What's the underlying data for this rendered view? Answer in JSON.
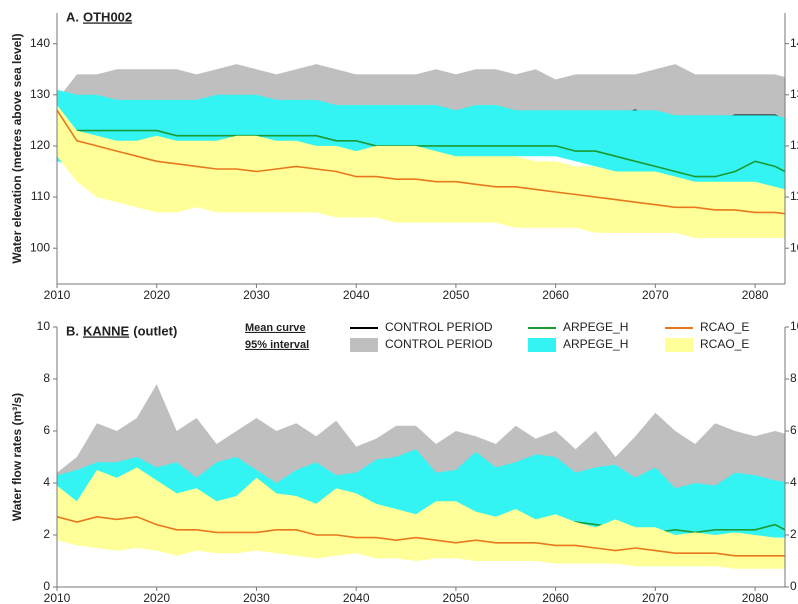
{
  "chart_data": [
    {
      "type": "band-line",
      "panel": "A.",
      "title": "OTH002",
      "ylabel": "Water elevation (metres above sea level)",
      "x": [
        2010,
        2012,
        2014,
        2016,
        2018,
        2020,
        2022,
        2024,
        2026,
        2028,
        2030,
        2032,
        2034,
        2036,
        2038,
        2040,
        2042,
        2044,
        2046,
        2048,
        2050,
        2052,
        2054,
        2056,
        2058,
        2060,
        2062,
        2064,
        2066,
        2068,
        2070,
        2072,
        2074,
        2076,
        2078,
        2080,
        2082,
        2084
      ],
      "xlim": [
        2010,
        2083
      ],
      "xticks": [
        2010,
        2020,
        2030,
        2040,
        2050,
        2060,
        2070,
        2080
      ],
      "ylim": [
        93,
        146
      ],
      "yticks": [
        100,
        110,
        120,
        130,
        140
      ],
      "series": [
        {
          "name": "CONTROL PERIOD",
          "kind": "band",
          "color": "#bfbfbf",
          "upper": [
            129,
            134,
            134,
            135,
            135,
            135,
            135,
            134,
            135,
            136,
            135,
            134,
            135,
            136,
            135,
            134,
            134,
            134,
            134,
            135,
            134,
            135,
            135,
            134,
            135,
            133,
            134,
            134,
            134,
            134,
            135,
            136,
            134,
            134,
            134,
            134,
            134,
            133
          ],
          "lower": [
            119,
            120,
            120,
            120,
            120,
            120,
            120,
            120,
            120,
            120,
            120,
            120,
            120,
            120,
            120,
            120,
            120,
            120,
            120,
            120,
            120,
            120,
            120,
            120,
            120,
            120,
            120,
            120,
            120,
            120,
            120,
            120,
            120,
            120,
            120,
            120,
            120,
            120
          ]
        },
        {
          "name": "CONTROL PERIOD",
          "kind": "line",
          "color": "#000000",
          "values": [
            126,
            126,
            126,
            126,
            126,
            126,
            126,
            126,
            126,
            126,
            126,
            126,
            126,
            126,
            127,
            125,
            125,
            125,
            125,
            126,
            125,
            125,
            125,
            125,
            125,
            125,
            126,
            126,
            126,
            127,
            125,
            125,
            125,
            125,
            126,
            126,
            126,
            124
          ]
        },
        {
          "name": "ARPEGE_H",
          "kind": "band",
          "color": "#33f3f3",
          "upper": [
            131,
            130,
            130,
            129,
            129,
            129,
            129,
            129,
            130,
            130,
            130,
            129,
            129,
            129,
            128,
            128,
            128,
            128,
            128,
            128,
            127,
            128,
            128,
            127,
            127,
            127,
            127,
            127,
            127,
            127,
            127,
            126,
            126,
            126,
            126,
            126,
            126,
            125
          ],
          "lower": [
            117,
            116,
            116,
            116,
            116,
            116,
            116,
            116,
            116,
            116,
            116,
            116,
            116,
            116,
            116,
            116,
            116,
            116,
            117,
            117,
            117,
            117,
            117,
            118,
            118,
            118,
            117,
            116,
            115,
            114,
            113,
            113,
            112,
            112,
            112,
            112,
            111,
            111
          ]
        },
        {
          "name": "ARPEGE_H",
          "kind": "line",
          "color": "#1a9a32",
          "values": [
            124,
            123,
            123,
            123,
            123,
            123,
            122,
            122,
            122,
            122,
            122,
            122,
            122,
            122,
            121,
            121,
            120,
            120,
            120,
            120,
            120,
            120,
            120,
            120,
            120,
            120,
            119,
            119,
            118,
            117,
            116,
            115,
            114,
            114,
            115,
            117,
            116,
            114
          ]
        },
        {
          "name": "RCAO_E",
          "kind": "band",
          "color": "#ffff99",
          "upper": [
            128,
            123,
            122,
            121,
            121,
            122,
            121,
            121,
            121,
            122,
            122,
            121,
            121,
            120,
            120,
            119,
            120,
            120,
            120,
            119,
            118,
            118,
            118,
            118,
            117,
            117,
            116,
            116,
            115,
            115,
            115,
            114,
            113,
            113,
            113,
            113,
            112,
            111
          ],
          "lower": [
            118,
            113,
            110,
            109,
            108,
            107,
            107,
            108,
            107,
            107,
            107,
            107,
            107,
            107,
            106,
            106,
            106,
            105,
            105,
            105,
            105,
            105,
            105,
            104,
            104,
            104,
            104,
            103,
            103,
            103,
            103,
            103,
            102,
            102,
            102,
            102,
            102,
            102
          ]
        },
        {
          "name": "RCAO_E",
          "kind": "line",
          "color": "#e8781e",
          "values": [
            127,
            121,
            120,
            119,
            118,
            117,
            116.5,
            116,
            115.5,
            115.5,
            115,
            115.5,
            116,
            115.5,
            115,
            114,
            114,
            113.5,
            113.5,
            113,
            113,
            112.5,
            112,
            112,
            111.5,
            111,
            110.5,
            110,
            109.5,
            109,
            108.5,
            108,
            108,
            107.5,
            107.5,
            107,
            107,
            106.5
          ]
        }
      ]
    },
    {
      "type": "band-line",
      "panel": "B.",
      "title": "KANNE",
      "title_note": "(outlet)",
      "ylabel": "Water flow rates (m³/s)",
      "legend_headers": [
        "Mean curve",
        "95% interval"
      ],
      "x": [
        2010,
        2012,
        2014,
        2016,
        2018,
        2020,
        2022,
        2024,
        2026,
        2028,
        2030,
        2032,
        2034,
        2036,
        2038,
        2040,
        2042,
        2044,
        2046,
        2048,
        2050,
        2052,
        2054,
        2056,
        2058,
        2060,
        2062,
        2064,
        2066,
        2068,
        2070,
        2072,
        2074,
        2076,
        2078,
        2080,
        2082,
        2084
      ],
      "xlim": [
        2010,
        2083
      ],
      "xticks": [
        2010,
        2020,
        2030,
        2040,
        2050,
        2060,
        2070,
        2080
      ],
      "ylim": [
        0,
        10
      ],
      "yticks": [
        0,
        2,
        4,
        6,
        8,
        10
      ],
      "series": [
        {
          "name": "CONTROL PERIOD",
          "kind": "band",
          "color": "#bfbfbf",
          "upper": [
            4.4,
            5.0,
            6.3,
            6.0,
            6.5,
            7.8,
            6.0,
            6.5,
            5.5,
            6.0,
            6.5,
            6.0,
            6.3,
            5.8,
            6.4,
            5.4,
            5.7,
            6.2,
            6.2,
            5.5,
            6.0,
            5.8,
            5.5,
            6.2,
            5.7,
            6.0,
            5.3,
            6.0,
            5.0,
            5.8,
            6.7,
            6.0,
            5.5,
            6.3,
            6.0,
            5.8,
            6.0,
            5.8
          ],
          "lower": [
            2.6,
            2.6,
            2.6,
            2.6,
            2.6,
            2.6,
            2.6,
            2.6,
            2.6,
            2.6,
            2.6,
            2.6,
            2.6,
            2.6,
            2.6,
            2.6,
            2.6,
            2.6,
            2.6,
            2.6,
            2.6,
            2.6,
            2.6,
            2.6,
            2.6,
            2.6,
            2.6,
            2.6,
            2.6,
            2.6,
            2.6,
            2.6,
            2.6,
            2.6,
            2.6,
            2.6,
            2.6,
            2.6
          ]
        },
        {
          "name": "CONTROL PERIOD",
          "kind": "line",
          "color": "#000000",
          "values": [
            3.5,
            3.5,
            3.5,
            3.5,
            3.5,
            3.5,
            3.5,
            3.5,
            3.5,
            3.5,
            3.5,
            3.5,
            3.5,
            3.5,
            3.5,
            3.5,
            3.5,
            3.5,
            3.5,
            3.5,
            3.5,
            3.5,
            3.5,
            3.5,
            3.5,
            3.5,
            3.5,
            3.5,
            3.5,
            3.8,
            3.8,
            3.4,
            3.4,
            3.4,
            3.5,
            3.8,
            3.6,
            3.4
          ]
        },
        {
          "name": "ARPEGE_H",
          "kind": "band",
          "color": "#33f3f3",
          "upper": [
            4.3,
            4.5,
            4.8,
            4.8,
            5.0,
            4.6,
            4.8,
            4.2,
            4.8,
            5.0,
            4.5,
            4.0,
            4.5,
            4.8,
            4.3,
            4.4,
            4.9,
            5.0,
            5.3,
            4.4,
            4.5,
            5.2,
            4.6,
            4.8,
            5.1,
            5.0,
            4.4,
            4.6,
            4.7,
            4.2,
            4.6,
            3.8,
            4.0,
            3.9,
            4.4,
            4.3,
            4.1,
            4.0
          ],
          "lower": [
            2.4,
            2.4,
            2.4,
            2.4,
            2.4,
            2.4,
            2.4,
            2.4,
            2.4,
            2.4,
            2.4,
            2.4,
            2.4,
            2.4,
            2.4,
            2.4,
            2.4,
            2.4,
            2.4,
            2.4,
            2.4,
            2.4,
            2.4,
            2.4,
            2.4,
            2.4,
            2.2,
            2.1,
            2.0,
            2.0,
            1.9,
            1.9,
            1.9,
            1.9,
            1.9,
            1.9,
            1.9,
            1.9
          ]
        },
        {
          "name": "ARPEGE_H",
          "kind": "line",
          "color": "#1a9a32",
          "values": [
            2.7,
            2.6,
            2.7,
            2.6,
            2.6,
            2.6,
            2.5,
            2.5,
            2.5,
            2.5,
            2.5,
            2.5,
            2.5,
            2.5,
            2.5,
            2.5,
            2.5,
            2.5,
            2.5,
            2.5,
            2.5,
            2.5,
            2.5,
            2.6,
            2.5,
            2.5,
            2.5,
            2.4,
            2.3,
            2.2,
            2.1,
            2.2,
            2.1,
            2.2,
            2.2,
            2.2,
            2.4,
            2.0
          ]
        },
        {
          "name": "RCAO_E",
          "kind": "band",
          "color": "#ffff99",
          "upper": [
            3.9,
            3.3,
            4.5,
            4.2,
            4.6,
            4.1,
            3.6,
            3.8,
            3.3,
            3.5,
            4.2,
            3.6,
            3.5,
            3.2,
            3.8,
            3.6,
            3.2,
            3.0,
            2.8,
            3.3,
            3.3,
            2.9,
            2.7,
            3.0,
            2.6,
            2.8,
            2.5,
            2.3,
            2.6,
            2.3,
            2.3,
            2.0,
            2.1,
            2.0,
            2.1,
            2.0,
            1.9,
            1.8
          ],
          "lower": [
            1.8,
            1.6,
            1.5,
            1.4,
            1.5,
            1.4,
            1.2,
            1.4,
            1.3,
            1.3,
            1.4,
            1.3,
            1.2,
            1.1,
            1.2,
            1.3,
            1.1,
            1.1,
            1.0,
            1.1,
            1.1,
            1.0,
            1.0,
            1.0,
            1.0,
            0.9,
            0.9,
            0.9,
            0.9,
            0.8,
            0.8,
            0.8,
            0.8,
            0.8,
            0.7,
            0.7,
            0.7,
            0.7
          ]
        },
        {
          "name": "RCAO_E",
          "kind": "line",
          "color": "#e8781e",
          "values": [
            2.7,
            2.5,
            2.7,
            2.6,
            2.7,
            2.4,
            2.2,
            2.2,
            2.1,
            2.1,
            2.1,
            2.2,
            2.2,
            2.0,
            2.0,
            1.9,
            1.9,
            1.8,
            1.9,
            1.8,
            1.7,
            1.8,
            1.7,
            1.7,
            1.7,
            1.6,
            1.6,
            1.5,
            1.4,
            1.5,
            1.4,
            1.3,
            1.3,
            1.3,
            1.2,
            1.2,
            1.2,
            1.2
          ]
        }
      ]
    }
  ]
}
